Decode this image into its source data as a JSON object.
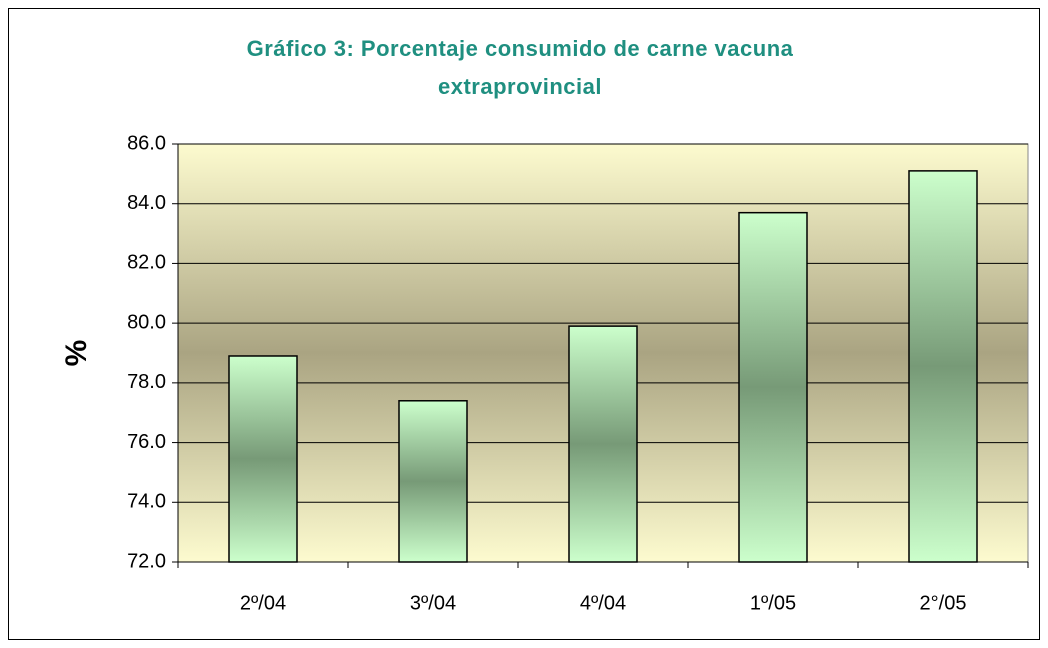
{
  "chart_data": {
    "type": "bar",
    "title": "Gráfico 3: Porcentaje consumido de carne vacuna extraprovincial",
    "y_label": "%",
    "categories": [
      "2º/04",
      "3º/04",
      "4º/04",
      "1º/05",
      "2°/05"
    ],
    "values": [
      78.9,
      77.4,
      79.9,
      83.7,
      85.1
    ],
    "ylim": [
      72,
      86
    ],
    "yticks": [
      {
        "value": 72,
        "label": "72.0"
      },
      {
        "value": 74,
        "label": "74.0"
      },
      {
        "value": 76,
        "label": "76.0"
      },
      {
        "value": 78,
        "label": "78.0"
      },
      {
        "value": 80,
        "label": "80.0"
      },
      {
        "value": 82,
        "label": "82.0"
      },
      {
        "value": 84,
        "label": "84.0"
      },
      {
        "value": 86,
        "label": "86.0"
      }
    ],
    "grid": true
  }
}
